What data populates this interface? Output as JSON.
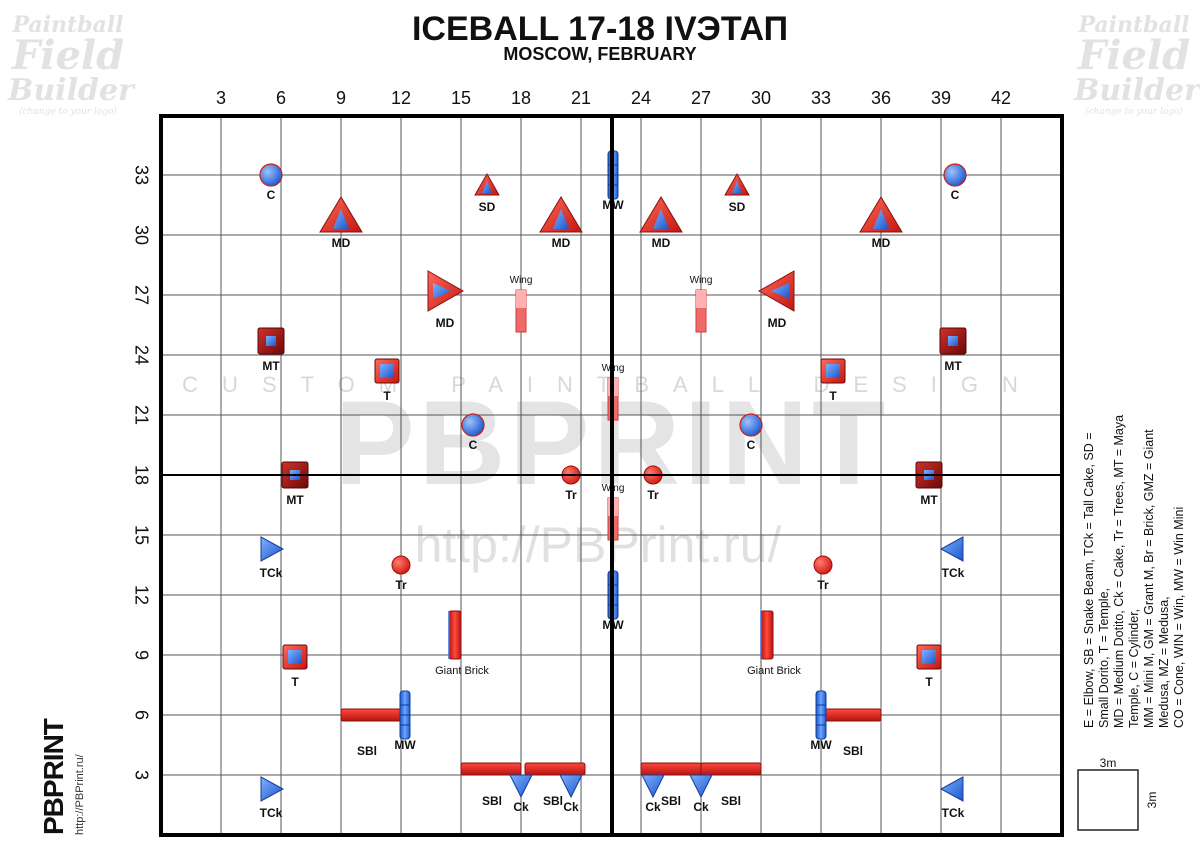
{
  "header": {
    "title": "ICEBALL 17-18 IVЭТАП",
    "subtitle": "MOSCOW, FEBRUARY"
  },
  "watermarks": {
    "corner": {
      "line1": "Paintball",
      "line2": "Field",
      "line3": "Builder",
      "line4": "(change to your logo)"
    },
    "center_small": "CUSTOM PAINTBALL DESIGN",
    "center_big": "PBPRINT",
    "center_url": "http://PBPrint.ru/"
  },
  "brand": {
    "logo": "PBPRINT",
    "url": "http://PBPrint.ru/"
  },
  "legend": {
    "line1": "E = Elbow, SB = Snake Beam, TCk = Tall Cake, SD = Small Dorito, T = Temple,",
    "line2": "MD = Medium Dotito, Ck = Cake, Tr = Trees, MT = Maya Temple, C = Cylinder,",
    "line3": "MM = Mini M, GM = Grant M, Br = Brick, GMZ = Giant Medusa, MZ = Medusa,",
    "line4": "CO = Cone, WIN = Win, MW = Win Mini"
  },
  "scale": {
    "horizontal": "3m",
    "vertical": "3m"
  },
  "field": {
    "x_ticks": [
      "3",
      "6",
      "9",
      "12",
      "15",
      "18",
      "21",
      "24",
      "27",
      "30",
      "33",
      "36",
      "39",
      "42"
    ],
    "y_ticks": [
      "33",
      "30",
      "27",
      "24",
      "21",
      "18",
      "15",
      "12",
      "9",
      "6",
      "3"
    ],
    "colors": {
      "red": "#e8231e",
      "blue": "#2f6fe0",
      "dark_red": "#8a1010"
    },
    "bunkers": [
      {
        "type": "cyl",
        "x": 5.5,
        "y": 33,
        "label": "C"
      },
      {
        "type": "cyl",
        "x": 39.7,
        "y": 33,
        "label": "C"
      },
      {
        "type": "cyl",
        "x": 15.6,
        "y": 20.5,
        "label": "C"
      },
      {
        "type": "cyl",
        "x": 29.5,
        "y": 20.5,
        "label": "C"
      },
      {
        "type": "sd",
        "x": 16.3,
        "y": 32.5,
        "label": "SD"
      },
      {
        "type": "sd",
        "x": 28.8,
        "y": 32.5,
        "label": "SD"
      },
      {
        "type": "md",
        "x": 9,
        "y": 31,
        "label": "MD"
      },
      {
        "type": "md",
        "x": 20,
        "y": 31,
        "label": "MD"
      },
      {
        "type": "md",
        "x": 25,
        "y": 31,
        "label": "MD"
      },
      {
        "type": "md",
        "x": 36,
        "y": 31,
        "label": "MD"
      },
      {
        "type": "mdr",
        "x": 14.2,
        "y": 27.2,
        "label": "MD"
      },
      {
        "type": "mdl",
        "x": 30.8,
        "y": 27.2,
        "label": "MD"
      },
      {
        "type": "mt",
        "x": 5.5,
        "y": 24.7,
        "label": "MT"
      },
      {
        "type": "mt",
        "x": 39.6,
        "y": 24.7,
        "label": "MT"
      },
      {
        "type": "mt",
        "x": 6.7,
        "y": 18,
        "label": "MT"
      },
      {
        "type": "mt",
        "x": 38.4,
        "y": 18,
        "label": "MT"
      },
      {
        "type": "t",
        "x": 11.3,
        "y": 23.2,
        "label": "T"
      },
      {
        "type": "t",
        "x": 33.6,
        "y": 23.2,
        "label": "T"
      },
      {
        "type": "t",
        "x": 6.7,
        "y": 8.9,
        "label": "T"
      },
      {
        "type": "t",
        "x": 38.4,
        "y": 8.9,
        "label": "T"
      },
      {
        "type": "tr",
        "x": 20.5,
        "y": 18,
        "label": "Tr"
      },
      {
        "type": "tr",
        "x": 24.6,
        "y": 18,
        "label": "Tr"
      },
      {
        "type": "tr",
        "x": 12,
        "y": 13.5,
        "label": "Tr"
      },
      {
        "type": "tr",
        "x": 33.1,
        "y": 13.5,
        "label": "Tr"
      },
      {
        "type": "tck",
        "x": 5.5,
        "y": 14.3,
        "label": "TCk",
        "dir": "right"
      },
      {
        "type": "tck",
        "x": 39.6,
        "y": 14.3,
        "label": "TCk",
        "dir": "left"
      },
      {
        "type": "tck",
        "x": 5.5,
        "y": 2.3,
        "label": "TCk",
        "dir": "right"
      },
      {
        "type": "tck",
        "x": 39.6,
        "y": 2.3,
        "label": "TCk",
        "dir": "left"
      },
      {
        "type": "ck",
        "x": 18,
        "y": 2.5,
        "label": "Ck"
      },
      {
        "type": "ck",
        "x": 20.5,
        "y": 2.5,
        "label": "Ck"
      },
      {
        "type": "ck",
        "x": 24.6,
        "y": 2.5,
        "label": "Ck"
      },
      {
        "type": "ck",
        "x": 27,
        "y": 2.5,
        "label": "Ck"
      }
    ],
    "beams": [
      {
        "kind": "sb",
        "x1": 9,
        "x2": 12,
        "y": 6,
        "label": "SBl"
      },
      {
        "kind": "sb",
        "x1": 33,
        "x2": 36,
        "y": 6,
        "label": "SBl"
      },
      {
        "kind": "sb",
        "x1": 15,
        "x2": 18,
        "y": 3.3,
        "label": "SBl"
      },
      {
        "kind": "sb",
        "x1": 18.2,
        "x2": 21.2,
        "y": 3.3,
        "label": "SBl"
      },
      {
        "kind": "sb",
        "x1": 24,
        "x2": 27,
        "y": 3.3,
        "label": "SBl"
      },
      {
        "kind": "sb",
        "x1": 27,
        "x2": 30,
        "y": 3.3,
        "label": "SBl"
      }
    ],
    "minis": [
      {
        "x": 22.6,
        "y": 33,
        "label": "MW"
      },
      {
        "x": 22.6,
        "y": 12,
        "label": "MW"
      },
      {
        "x": 12.2,
        "y": 6,
        "label": "MW"
      },
      {
        "x": 33,
        "y": 6,
        "label": "MW"
      }
    ],
    "bricks": [
      {
        "x": 14.7,
        "y": 10,
        "label": "Giant Brick"
      },
      {
        "x": 30.3,
        "y": 10,
        "label": "Giant Brick"
      }
    ],
    "wings": [
      {
        "x": 18,
        "y": 26.2,
        "label": "Wing"
      },
      {
        "x": 27,
        "y": 26.2,
        "label": "Wing"
      },
      {
        "x": 22.6,
        "y": 21.8,
        "label": "Wing"
      },
      {
        "x": 22.6,
        "y": 15.8,
        "label": "Wing"
      }
    ]
  }
}
